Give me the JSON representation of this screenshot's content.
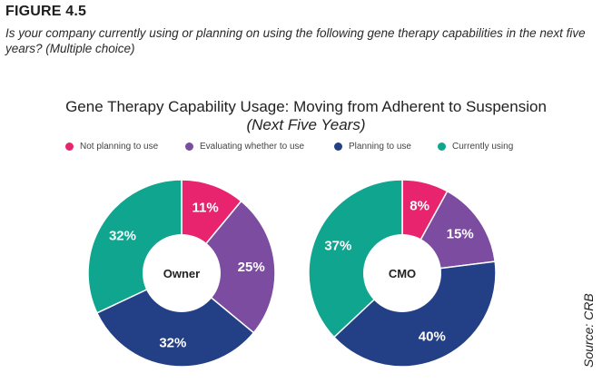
{
  "figure": {
    "label": "FIGURE 4.5",
    "question": "Is your company currently using or planning on using the following gene therapy capabilities in the next five years? (Multiple choice)",
    "source": "Source: CRB"
  },
  "chart_data": {
    "type": "pie",
    "title": "Gene Therapy Capability Usage: Moving from Adherent to Suspension",
    "subtitle": "(Next Five Years)",
    "legend_position": "top",
    "categories": [
      "Not planning to use",
      "Evaluating whether to use",
      "Planning to use",
      "Currently using"
    ],
    "colors": [
      "#e8246f",
      "#7b4ca0",
      "#233f85",
      "#0fa58f"
    ],
    "series": [
      {
        "name": "Owner",
        "values": [
          11,
          25,
          32,
          32
        ],
        "labels": [
          "11%",
          "25%",
          "32%",
          "32%"
        ]
      },
      {
        "name": "CMO",
        "values": [
          8,
          15,
          40,
          37
        ],
        "labels": [
          "8%",
          "15%",
          "40%",
          "37%"
        ]
      }
    ]
  }
}
